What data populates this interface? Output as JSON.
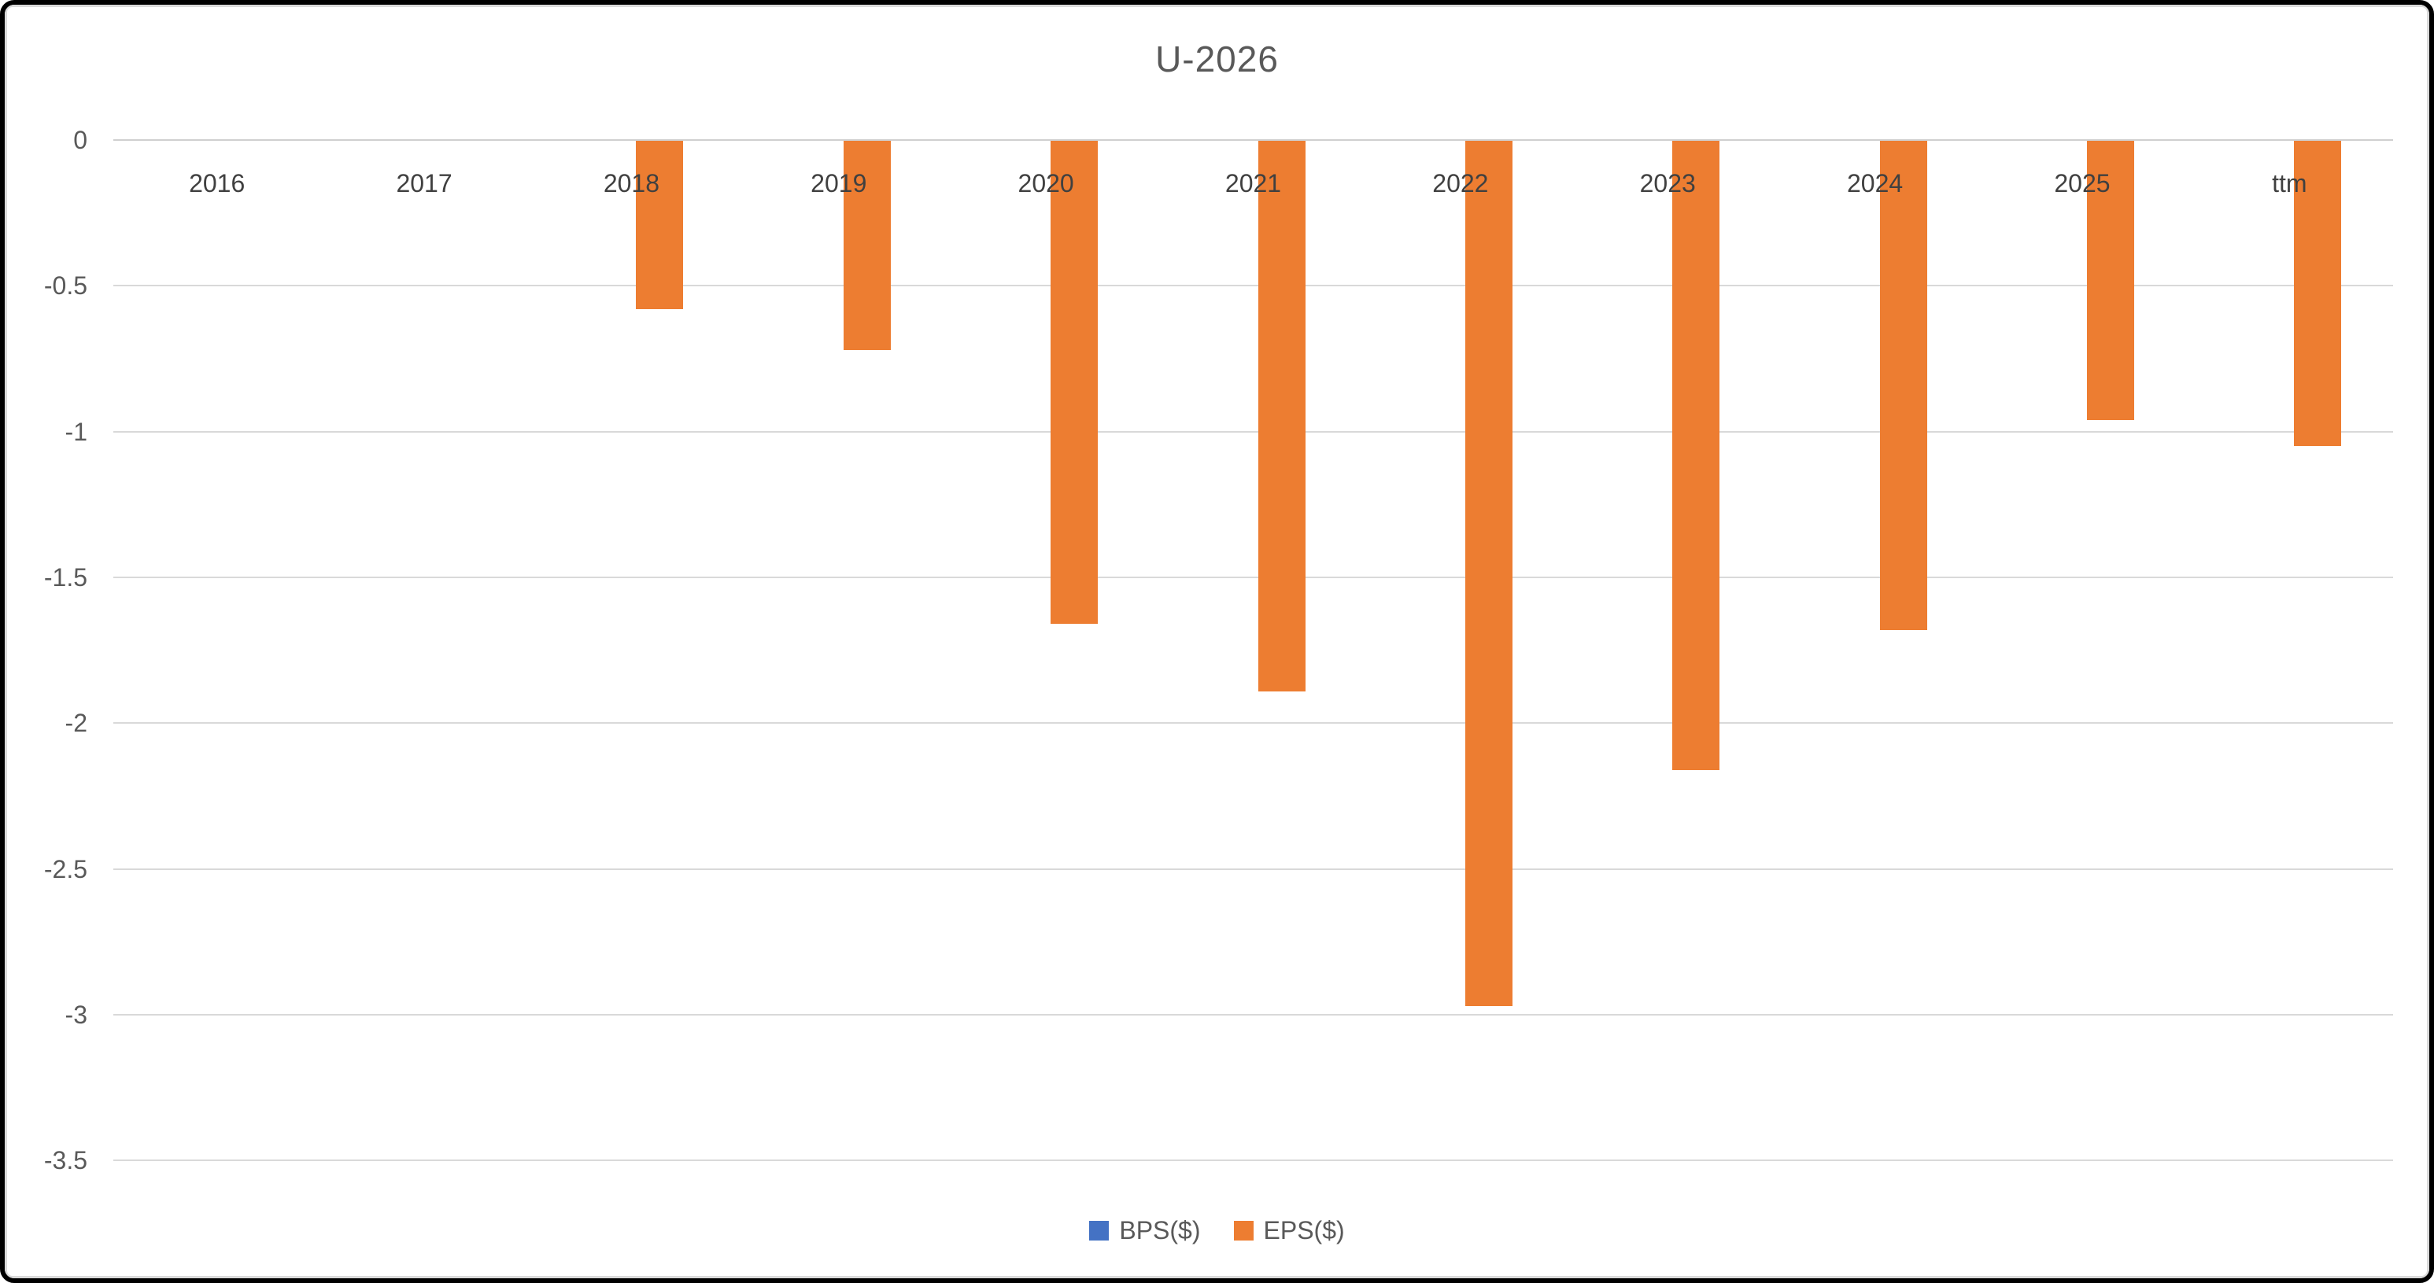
{
  "title": "U-2026",
  "colors": {
    "accent_blue": "#4472C4",
    "accent_orange": "#ED7D31",
    "text": "#595959",
    "gridline": "#D9D9D9",
    "zero_axis_line": "#D0D0D0",
    "frame_border": "#000000",
    "background": "#FFFFFF"
  },
  "chart_data": {
    "type": "bar",
    "title": "U-2026",
    "categories": [
      "2016",
      "2017",
      "2018",
      "2019",
      "2020",
      "2021",
      "2022",
      "2023",
      "2024",
      "2025",
      "ttm"
    ],
    "series": [
      {
        "name": "BPS($)",
        "color": "#4472C4",
        "values": [
          null,
          null,
          null,
          null,
          null,
          null,
          null,
          null,
          null,
          null,
          null
        ]
      },
      {
        "name": "EPS($)",
        "color": "#ED7D31",
        "values": [
          null,
          null,
          -0.58,
          -0.72,
          -1.66,
          -1.89,
          -2.97,
          -2.16,
          -1.68,
          -0.96,
          -1.05
        ]
      }
    ],
    "xlabel": "",
    "ylabel": "",
    "ylim": [
      -3.5,
      0
    ],
    "y_ticks": [
      0,
      -0.5,
      -1,
      -1.5,
      -2,
      -2.5,
      -3,
      -3.5
    ],
    "y_tick_labels": [
      "0",
      "-0.5",
      "-1",
      "-1.5",
      "-2",
      "-2.5",
      "-3",
      "-3.5"
    ],
    "grid": true,
    "legend_position": "bottom-center"
  },
  "legend": {
    "items": [
      {
        "label": "BPS($)",
        "color": "#4472C4"
      },
      {
        "label": "EPS($)",
        "color": "#ED7D31"
      }
    ]
  }
}
